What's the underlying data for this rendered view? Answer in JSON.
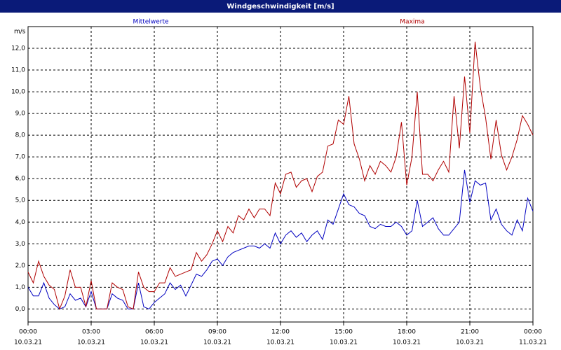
{
  "chart_data": {
    "type": "line",
    "title": "Windgeschwindigkeit [m/s]",
    "y_unit": "m/s",
    "x": [
      0,
      0.25,
      0.5,
      0.75,
      1,
      1.25,
      1.5,
      1.75,
      2,
      2.25,
      2.5,
      2.75,
      3,
      3.25,
      3.5,
      3.75,
      4,
      4.25,
      4.5,
      4.75,
      5,
      5.25,
      5.5,
      5.75,
      6,
      6.25,
      6.5,
      6.75,
      7,
      7.25,
      7.5,
      7.75,
      8,
      8.25,
      8.5,
      8.75,
      9,
      9.25,
      9.5,
      9.75,
      10,
      10.25,
      10.5,
      10.75,
      11,
      11.25,
      11.5,
      11.75,
      12,
      12.25,
      12.5,
      12.75,
      13,
      13.25,
      13.5,
      13.75,
      14,
      14.25,
      14.5,
      14.75,
      15,
      15.25,
      15.5,
      15.75,
      16,
      16.25,
      16.5,
      16.75,
      17,
      17.25,
      17.5,
      17.75,
      18,
      18.25,
      18.5,
      18.75,
      19,
      19.25,
      19.5,
      19.75,
      20,
      20.25,
      20.5,
      20.75,
      21,
      21.25,
      21.5,
      21.75,
      22,
      22.25,
      22.5,
      22.75,
      23,
      23.25,
      23.5,
      23.75,
      24
    ],
    "series": [
      {
        "name": "Mittelwerte",
        "color": "#0000c0",
        "values": [
          1.0,
          0.6,
          0.6,
          1.2,
          0.5,
          0.2,
          0.0,
          0.1,
          0.7,
          0.4,
          0.5,
          0.1,
          0.8,
          0.0,
          0.0,
          0.0,
          0.7,
          0.5,
          0.4,
          0.0,
          0.0,
          1.2,
          0.1,
          0.0,
          0.3,
          0.5,
          0.7,
          1.2,
          0.9,
          1.1,
          0.6,
          1.1,
          1.6,
          1.5,
          1.8,
          2.2,
          2.3,
          2.0,
          2.4,
          2.6,
          2.7,
          2.8,
          2.9,
          2.9,
          2.8,
          3.0,
          2.8,
          3.5,
          3.0,
          3.4,
          3.6,
          3.3,
          3.5,
          3.1,
          3.4,
          3.6,
          3.2,
          4.1,
          3.9,
          4.6,
          5.3,
          4.8,
          4.7,
          4.4,
          4.3,
          3.8,
          3.7,
          3.9,
          3.8,
          3.8,
          4.0,
          3.8,
          3.4,
          3.6,
          5.0,
          3.8,
          4.0,
          4.2,
          3.7,
          3.4,
          3.4,
          3.7,
          4.0,
          6.4,
          4.9,
          5.9,
          5.7,
          5.8,
          4.1,
          4.6,
          3.9,
          3.6,
          3.4,
          4.1,
          3.6,
          5.1,
          4.5
        ]
      },
      {
        "name": "Maxima",
        "color": "#b00000",
        "values": [
          1.7,
          1.2,
          2.2,
          1.5,
          1.1,
          0.9,
          0.0,
          0.6,
          1.8,
          1.0,
          1.0,
          0.1,
          1.3,
          0.0,
          0.0,
          0.0,
          1.2,
          1.0,
          0.9,
          0.1,
          0.0,
          1.7,
          1.0,
          0.8,
          0.8,
          1.2,
          1.2,
          1.9,
          1.5,
          1.6,
          1.7,
          1.8,
          2.6,
          2.2,
          2.5,
          3.0,
          3.6,
          3.1,
          3.8,
          3.5,
          4.3,
          4.1,
          4.6,
          4.2,
          4.6,
          4.6,
          4.3,
          5.8,
          5.3,
          6.2,
          6.3,
          5.6,
          5.9,
          6.0,
          5.4,
          6.1,
          6.3,
          7.5,
          7.6,
          8.7,
          8.5,
          9.8,
          7.6,
          6.9,
          5.9,
          6.6,
          6.2,
          6.8,
          6.6,
          6.3,
          7.0,
          8.6,
          5.7,
          7.0,
          10.0,
          6.2,
          6.2,
          5.9,
          6.4,
          6.8,
          6.3,
          9.8,
          7.4,
          10.7,
          8.1,
          12.3,
          10.2,
          8.8,
          6.9,
          8.7,
          7.1,
          6.4,
          7.0,
          7.8,
          8.9,
          8.5,
          8.0
        ]
      }
    ],
    "xlim": [
      0,
      24
    ],
    "xticks": [
      {
        "value": 0,
        "label": "00:00",
        "date": "10.03.21"
      },
      {
        "value": 3,
        "label": "03:00",
        "date": "10.03.21"
      },
      {
        "value": 6,
        "label": "06:00",
        "date": "10.03.21"
      },
      {
        "value": 9,
        "label": "09:00",
        "date": "10.03.21"
      },
      {
        "value": 12,
        "label": "12:00",
        "date": "10.03.21"
      },
      {
        "value": 15,
        "label": "15:00",
        "date": "10.03.21"
      },
      {
        "value": 18,
        "label": "18:00",
        "date": "10.03.21"
      },
      {
        "value": 21,
        "label": "21:00",
        "date": "10.03.21"
      },
      {
        "value": 24,
        "label": "00:00",
        "date": "11.03.21"
      }
    ],
    "ylim": [
      -0.6,
      13
    ],
    "yticks": [
      {
        "value": 0,
        "label": "0,0"
      },
      {
        "value": 1,
        "label": "1,0"
      },
      {
        "value": 2,
        "label": "2,0"
      },
      {
        "value": 3,
        "label": "3,0"
      },
      {
        "value": 4,
        "label": "4,0"
      },
      {
        "value": 5,
        "label": "5,0"
      },
      {
        "value": 6,
        "label": "6,0"
      },
      {
        "value": 7,
        "label": "7,0"
      },
      {
        "value": 8,
        "label": "8,0"
      },
      {
        "value": 9,
        "label": "9,0"
      },
      {
        "value": 10,
        "label": "10,0"
      },
      {
        "value": 11,
        "label": "11,0"
      },
      {
        "value": 12,
        "label": "12,0"
      }
    ],
    "grid": true
  }
}
